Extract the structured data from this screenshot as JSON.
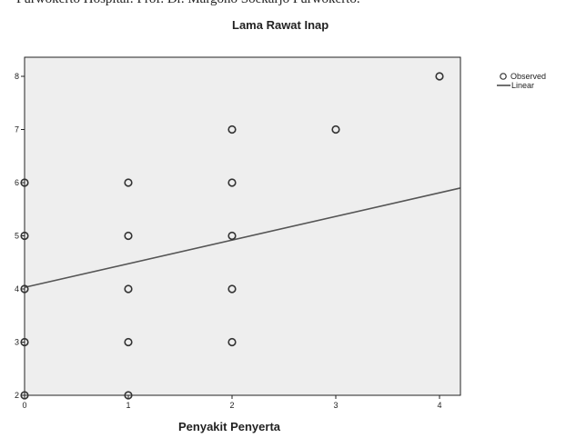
{
  "header_text": "Purwokerto Hospital: Prof. Dr. Margono Soekarjo Purwokerto.",
  "chart_data": {
    "type": "scatter",
    "title": "Lama Rawat Inap",
    "xlabel": "Penyakit Penyerta",
    "ylabel": "",
    "xlim": [
      0,
      4.2
    ],
    "ylim": [
      2,
      8.3
    ],
    "x_ticks": [
      0,
      1,
      2,
      3,
      4
    ],
    "y_ticks": [
      2,
      3,
      4,
      5,
      6,
      7,
      8
    ],
    "grid": false,
    "legend_position": "top-right",
    "plot_background": "#eeeeee",
    "series": [
      {
        "name": "Observed",
        "kind": "points",
        "marker": "open-circle",
        "color": "#333333",
        "points": [
          {
            "x": 0,
            "y": 2
          },
          {
            "x": 0,
            "y": 3
          },
          {
            "x": 0,
            "y": 4
          },
          {
            "x": 0,
            "y": 5
          },
          {
            "x": 0,
            "y": 6
          },
          {
            "x": 1,
            "y": 2
          },
          {
            "x": 1,
            "y": 3
          },
          {
            "x": 1,
            "y": 4
          },
          {
            "x": 1,
            "y": 5
          },
          {
            "x": 1,
            "y": 6
          },
          {
            "x": 2,
            "y": 3
          },
          {
            "x": 2,
            "y": 4
          },
          {
            "x": 2,
            "y": 5
          },
          {
            "x": 2,
            "y": 6
          },
          {
            "x": 2,
            "y": 7
          },
          {
            "x": 3,
            "y": 7
          },
          {
            "x": 4,
            "y": 8
          }
        ]
      },
      {
        "name": "Linear",
        "kind": "line",
        "color": "#555555",
        "intercept": 4.03,
        "slope": 0.445
      }
    ]
  }
}
